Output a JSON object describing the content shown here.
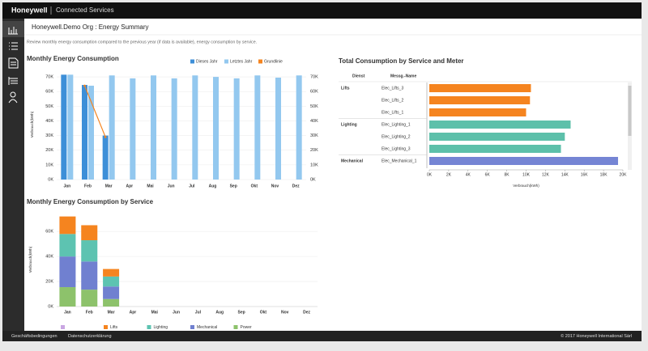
{
  "header": {
    "brand": "Honeywell",
    "product": "Connected Services"
  },
  "page": {
    "title": "Honeywell.Demo Org : Energy Summary",
    "subtitle": "Review monthly energy consumption compared to the previous year (if data is available), energy consumption by service."
  },
  "chart_data": [
    {
      "type": "bar",
      "title": "Monthly Energy Consumption",
      "y_label": "Verbrauch(kWh)",
      "categories": [
        "Jan",
        "Feb",
        "Mar",
        "Apr",
        "Mai",
        "Jun",
        "Jul",
        "Aug",
        "Sep",
        "Okt",
        "Nov",
        "Dez"
      ],
      "series": [
        {
          "name": "Dieses Jahr",
          "color": "#3d8fd8",
          "values": [
            71.5,
            64.5,
            30,
            null,
            null,
            null,
            null,
            null,
            null,
            null,
            null,
            null
          ]
        },
        {
          "name": "Letztes Jahr",
          "color": "#93c8ef",
          "values": [
            71.5,
            64,
            71,
            69,
            71,
            69,
            71,
            70,
            69,
            71,
            69.5,
            71
          ]
        },
        {
          "name": "Grundlinie",
          "type": "line",
          "color": "#f5841f",
          "values": [
            null,
            64,
            29,
            null,
            null,
            null,
            null,
            null,
            null,
            null,
            null,
            null
          ]
        }
      ],
      "ylim": [
        0,
        75
      ],
      "yticks": [
        {
          "value": 0,
          "label": "0K"
        },
        {
          "value": 10,
          "label": "10K"
        },
        {
          "value": 20,
          "label": "20K"
        },
        {
          "value": 30,
          "label": "30K"
        },
        {
          "value": 40,
          "label": "40K"
        },
        {
          "value": 50,
          "label": "50K"
        },
        {
          "value": 60,
          "label": "60K"
        },
        {
          "value": 70,
          "label": "70K"
        }
      ],
      "y2lim": [
        0,
        75
      ],
      "y2ticks": [
        {
          "value": 0,
          "label": "0K"
        },
        {
          "value": 10,
          "label": "10K"
        },
        {
          "value": 20,
          "label": "20K"
        },
        {
          "value": 30,
          "label": "30K"
        },
        {
          "value": 40,
          "label": "40K"
        },
        {
          "value": 50,
          "label": "50K"
        },
        {
          "value": 60,
          "label": "60K"
        },
        {
          "value": 70,
          "label": "70K"
        }
      ],
      "grid": true
    },
    {
      "type": "hbar",
      "title": "Total Consumption by Service and Meter",
      "columns": [
        "Dienst",
        "Messg.-Name"
      ],
      "x_label": "Verbrauch(kWh)",
      "services": [
        "Lifts",
        null,
        null,
        "Lighting",
        null,
        null,
        "Mechanical"
      ],
      "categories": [
        "Elec_Lifts_3",
        "Elec_Lifts_2",
        "Elec_Lifts_1",
        "Elec_Lighting_1",
        "Elec_Lighting_2",
        "Elec_Lighting_3",
        "Elec_Mechanical_1"
      ],
      "values": [
        10.5,
        10.4,
        10,
        14.6,
        14,
        13.6,
        19.5
      ],
      "colors": [
        "#f5841f",
        "#f5841f",
        "#f5841f",
        "#5dc0aa",
        "#5dc0aa",
        "#5dc0aa",
        "#7585d4"
      ],
      "xlim": [
        0,
        20
      ],
      "xticks": [
        {
          "value": 0,
          "label": "0K"
        },
        {
          "value": 2,
          "label": "2K"
        },
        {
          "value": 4,
          "label": "4K"
        },
        {
          "value": 6,
          "label": "6K"
        },
        {
          "value": 8,
          "label": "8K"
        },
        {
          "value": 10,
          "label": "10K"
        },
        {
          "value": 12,
          "label": "12K"
        },
        {
          "value": 14,
          "label": "14K"
        },
        {
          "value": 16,
          "label": "16K"
        },
        {
          "value": 18,
          "label": "18K"
        },
        {
          "value": 20,
          "label": "20K"
        }
      ]
    },
    {
      "type": "stacked_bar",
      "title": "Monthly Energy Consumption by Service",
      "y_label": "Verbrauch(kWh)",
      "categories": [
        "Jan",
        "Feb",
        "Mar",
        "Apr",
        "Mai",
        "Jun",
        "Jul",
        "Aug",
        "Sep",
        "Okt",
        "Nov",
        "Dez"
      ],
      "series": [
        {
          "name": "Lifts",
          "color": "#f5841f",
          "values": [
            14,
            12,
            6,
            null,
            null,
            null,
            null,
            null,
            null,
            null,
            null,
            null
          ]
        },
        {
          "name": "Lighting",
          "color": "#5dc3b1",
          "values": [
            18,
            17,
            8,
            null,
            null,
            null,
            null,
            null,
            null,
            null,
            null,
            null
          ]
        },
        {
          "name": "Mechanical",
          "color": "#7080d0",
          "values": [
            24.5,
            22.5,
            10,
            null,
            null,
            null,
            null,
            null,
            null,
            null,
            null,
            null
          ]
        },
        {
          "name": "Power",
          "color": "#8dc26b",
          "values": [
            15.5,
            13.5,
            6,
            null,
            null,
            null,
            null,
            null,
            null,
            null,
            null,
            null
          ]
        }
      ],
      "ylim": [
        0,
        75
      ],
      "yticks": [
        {
          "value": 0,
          "label": "0K"
        },
        {
          "value": 20,
          "label": "20K"
        },
        {
          "value": 40,
          "label": "40K"
        },
        {
          "value": 60,
          "label": "60K"
        }
      ],
      "grid": true
    }
  ],
  "footer": {
    "links": [
      "Geschäftsbedingungen",
      "Datenschutzerklärung"
    ],
    "copyright": "© 2017 Honeywell International Sàrl"
  }
}
